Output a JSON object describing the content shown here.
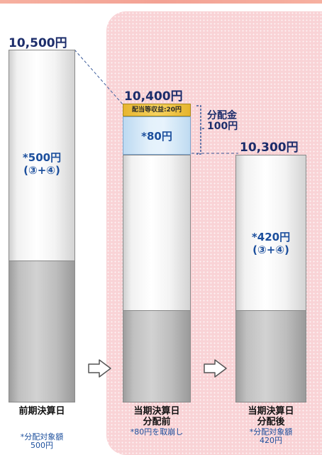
{
  "colors": {
    "accent_bg": "#f9d3d6",
    "value_text": "#1c2d6b",
    "inner_text": "#1c4f9d",
    "yellow_segment": "#f0c64a",
    "blue_segment": "#d6eaf8"
  },
  "columns": [
    {
      "value_label": "10,500円",
      "inner": {
        "line1": "*500円",
        "line2": "(③+④)"
      },
      "title": {
        "line1": "前期決算日",
        "line2": ""
      },
      "note": {
        "line1": "*分配対象額",
        "line2": "500円"
      }
    },
    {
      "value_label": "10,400円",
      "yellow_label": "配当等収益:20円",
      "blue_label": "*80円",
      "distribution": {
        "line1": "分配金",
        "line2": "100円"
      },
      "title": {
        "line1": "当期決算日",
        "line2": "分配前"
      },
      "note": {
        "line1": "*80円を取崩し",
        "line2": ""
      }
    },
    {
      "value_label": "10,300円",
      "inner": {
        "line1": "*420円",
        "line2": "(③+④)"
      },
      "title": {
        "line1": "当期決算日",
        "line2": "分配後"
      },
      "note": {
        "line1": "*分配対象額",
        "line2": "420円"
      }
    }
  ],
  "arrows": [
    {
      "icon": "right-arrow-icon"
    },
    {
      "icon": "right-arrow-icon"
    }
  ]
}
